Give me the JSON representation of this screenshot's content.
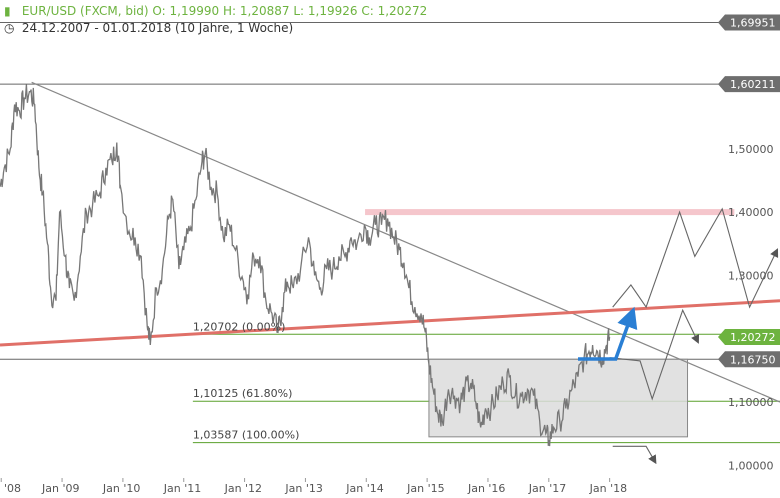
{
  "header": {
    "icon": "bar-chart-icon",
    "symbol_info": "EUR/USD (FXCM, bid)",
    "open_label": "O:",
    "open_value": "1,19990",
    "high_label": "H:",
    "high_value": "1,20887",
    "low_label": "L:",
    "low_value": "1,19926",
    "close_label": "C:",
    "close_value": "1,20272",
    "clock_icon": "clock-icon",
    "range": "24.12.2007 - 01.01.2018",
    "interval": "(10 Jahre, 1 Woche)"
  },
  "colors": {
    "accent_green": "#6db33f",
    "price": "#777777",
    "trendline_red": "#e07068",
    "resistance_pink": "#f5c6cc",
    "fib_green": "#5aa02c",
    "box_fill": "#dcdcdc",
    "blue_arrow": "#2a7fd4",
    "tag_grey": "#6e6e6e",
    "tag_green": "#6db33f"
  },
  "chart_data": {
    "type": "line",
    "title": "EUR/USD (FXCM, bid)",
    "xlabel": "",
    "ylabel": "",
    "x_tick_labels": [
      "'08",
      "Jan '09",
      "Jan '10",
      "Jan '11",
      "Jan '12",
      "Jan '13",
      "Jan '14",
      "Jan '15",
      "Jan '16",
      "Jan '17",
      "Jan '18"
    ],
    "y_tick_labels": [
      "1,00000",
      "1,10000",
      "1,30000",
      "1,40000",
      "1,50000"
    ],
    "ylim": [
      0.98,
      1.735
    ],
    "xlim": [
      2007.98,
      2020.8
    ],
    "grid": false,
    "series": [
      {
        "values": [
          [
            2007.98,
            1.44
          ],
          [
            2008.05,
            1.47
          ],
          [
            2008.15,
            1.5
          ],
          [
            2008.22,
            1.57
          ],
          [
            2008.3,
            1.56
          ],
          [
            2008.38,
            1.58
          ],
          [
            2008.48,
            1.59
          ],
          [
            2008.55,
            1.57
          ],
          [
            2008.62,
            1.47
          ],
          [
            2008.68,
            1.43
          ],
          [
            2008.76,
            1.35
          ],
          [
            2008.82,
            1.27
          ],
          [
            2008.9,
            1.26
          ],
          [
            2008.96,
            1.4
          ],
          [
            2009.05,
            1.33
          ],
          [
            2009.12,
            1.28
          ],
          [
            2009.2,
            1.26
          ],
          [
            2009.3,
            1.33
          ],
          [
            2009.4,
            1.4
          ],
          [
            2009.5,
            1.41
          ],
          [
            2009.62,
            1.43
          ],
          [
            2009.72,
            1.47
          ],
          [
            2009.82,
            1.48
          ],
          [
            2009.9,
            1.51
          ],
          [
            2009.96,
            1.44
          ],
          [
            2010.1,
            1.37
          ],
          [
            2010.2,
            1.36
          ],
          [
            2010.3,
            1.33
          ],
          [
            2010.4,
            1.22
          ],
          [
            2010.45,
            1.19
          ],
          [
            2010.55,
            1.28
          ],
          [
            2010.65,
            1.31
          ],
          [
            2010.75,
            1.39
          ],
          [
            2010.82,
            1.42
          ],
          [
            2010.92,
            1.31
          ],
          [
            2011.0,
            1.34
          ],
          [
            2011.1,
            1.37
          ],
          [
            2011.2,
            1.42
          ],
          [
            2011.3,
            1.48
          ],
          [
            2011.35,
            1.49
          ],
          [
            2011.45,
            1.44
          ],
          [
            2011.55,
            1.43
          ],
          [
            2011.65,
            1.36
          ],
          [
            2011.75,
            1.38
          ],
          [
            2011.85,
            1.34
          ],
          [
            2011.98,
            1.29
          ],
          [
            2012.05,
            1.27
          ],
          [
            2012.15,
            1.33
          ],
          [
            2012.25,
            1.33
          ],
          [
            2012.35,
            1.26
          ],
          [
            2012.45,
            1.24
          ],
          [
            2012.55,
            1.21
          ],
          [
            2012.62,
            1.25
          ],
          [
            2012.7,
            1.29
          ],
          [
            2012.8,
            1.28
          ],
          [
            2012.92,
            1.31
          ],
          [
            2013.05,
            1.36
          ],
          [
            2013.15,
            1.3
          ],
          [
            2013.25,
            1.28
          ],
          [
            2013.35,
            1.31
          ],
          [
            2013.45,
            1.31
          ],
          [
            2013.55,
            1.33
          ],
          [
            2013.65,
            1.33
          ],
          [
            2013.75,
            1.36
          ],
          [
            2013.85,
            1.35
          ],
          [
            2013.97,
            1.38
          ],
          [
            2014.05,
            1.36
          ],
          [
            2014.15,
            1.38
          ],
          [
            2014.25,
            1.38
          ],
          [
            2014.35,
            1.39
          ],
          [
            2014.45,
            1.36
          ],
          [
            2014.55,
            1.34
          ],
          [
            2014.62,
            1.32
          ],
          [
            2014.7,
            1.28
          ],
          [
            2014.8,
            1.25
          ],
          [
            2014.9,
            1.24
          ],
          [
            2014.97,
            1.21
          ],
          [
            2015.03,
            1.16
          ],
          [
            2015.1,
            1.12
          ],
          [
            2015.18,
            1.08
          ],
          [
            2015.25,
            1.07
          ],
          [
            2015.35,
            1.12
          ],
          [
            2015.45,
            1.11
          ],
          [
            2015.55,
            1.1
          ],
          [
            2015.62,
            1.12
          ],
          [
            2015.72,
            1.13
          ],
          [
            2015.8,
            1.1
          ],
          [
            2015.88,
            1.06
          ],
          [
            2015.96,
            1.09
          ],
          [
            2016.05,
            1.09
          ],
          [
            2016.15,
            1.11
          ],
          [
            2016.25,
            1.13
          ],
          [
            2016.35,
            1.14
          ],
          [
            2016.45,
            1.11
          ],
          [
            2016.55,
            1.11
          ],
          [
            2016.65,
            1.12
          ],
          [
            2016.75,
            1.11
          ],
          [
            2016.85,
            1.07
          ],
          [
            2016.95,
            1.05
          ],
          [
            2017.0,
            1.04
          ],
          [
            2017.08,
            1.06
          ],
          [
            2017.18,
            1.07
          ],
          [
            2017.28,
            1.09
          ],
          [
            2017.38,
            1.12
          ],
          [
            2017.48,
            1.14
          ],
          [
            2017.58,
            1.17
          ],
          [
            2017.66,
            1.18
          ],
          [
            2017.72,
            1.19
          ],
          [
            2017.8,
            1.18
          ],
          [
            2017.88,
            1.17
          ],
          [
            2017.95,
            1.19
          ],
          [
            2018.0,
            1.2027
          ]
        ]
      }
    ],
    "price_tags": [
      {
        "label": "1,69951",
        "value": 1.69951
      },
      {
        "label": "1,60211",
        "value": 1.60211
      },
      {
        "label": "1,20272",
        "value": 1.20272
      },
      {
        "label": "1,16750",
        "value": 1.1675
      }
    ],
    "horizontal_levels": [
      {
        "value": 1.69951,
        "style": "gray"
      },
      {
        "value": 1.60211,
        "style": "gray"
      },
      {
        "value": 1.1675,
        "style": "gray"
      },
      {
        "value": 1.20702,
        "style": "fib"
      },
      {
        "value": 1.10125,
        "style": "fib"
      },
      {
        "value": 1.03587,
        "style": "fib"
      }
    ],
    "fibonacci_labels": [
      {
        "label": "1,20702 (0.00%)",
        "value": 1.20702
      },
      {
        "label": "1,10125 (61.80%)",
        "value": 1.10125
      },
      {
        "label": "1,03587 (100.00%)",
        "value": 1.03587
      }
    ],
    "trendlines": [
      {
        "name": "descending-trendline",
        "from": [
          2008.5,
          1.605
        ],
        "to": [
          2020.8,
          1.1
        ]
      },
      {
        "name": "ascending-trendline",
        "from": [
          2007.98,
          1.19
        ],
        "to": [
          2020.8,
          1.26
        ]
      }
    ],
    "resistance_zone": {
      "from": 2013.98,
      "to": 2020.05,
      "value": 1.4
    },
    "consolidation_box": {
      "x0": 2015.03,
      "x1": 2019.28,
      "y0": 1.045,
      "y1": 1.1675
    },
    "projection_paths": [
      [
        [
          2018.05,
          1.25
        ],
        [
          2018.35,
          1.285
        ],
        [
          2018.6,
          1.25
        ],
        [
          2019.15,
          1.4
        ],
        [
          2019.4,
          1.33
        ],
        [
          2019.85,
          1.405
        ],
        [
          2020.3,
          1.25
        ],
        [
          2020.75,
          1.34
        ]
      ],
      [
        [
          2018.0,
          1.17
        ],
        [
          2018.5,
          1.165
        ],
        [
          2018.7,
          1.105
        ],
        [
          2019.2,
          1.245
        ],
        [
          2019.45,
          1.195
        ]
      ],
      [
        [
          2018.05,
          1.03
        ],
        [
          2018.6,
          1.03
        ],
        [
          2018.75,
          1.005
        ]
      ]
    ],
    "blue_arrow": [
      [
        2017.48,
        1.168
      ],
      [
        2018.1,
        1.168
      ],
      [
        2018.35,
        1.235
      ]
    ]
  }
}
